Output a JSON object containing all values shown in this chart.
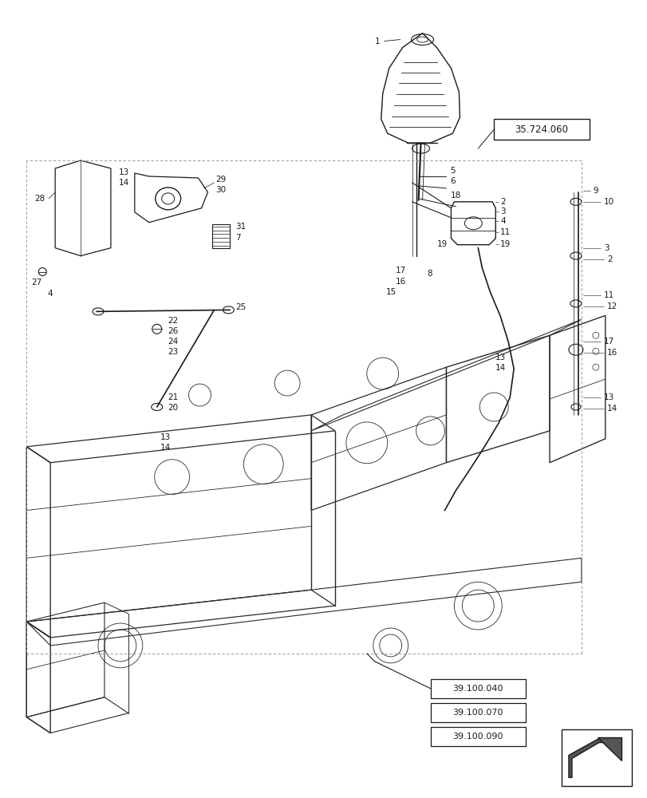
{
  "background_color": "#ffffff",
  "ref_box_1": "35.724.060",
  "ref_box_2_lines": [
    "39.100.040",
    "39.100.070",
    "39.100.090"
  ],
  "line_color": "#1a1a1a",
  "frame_color": "#2a2a2a",
  "label_fontsize": 7.5,
  "ref_fontsize": 8.5
}
